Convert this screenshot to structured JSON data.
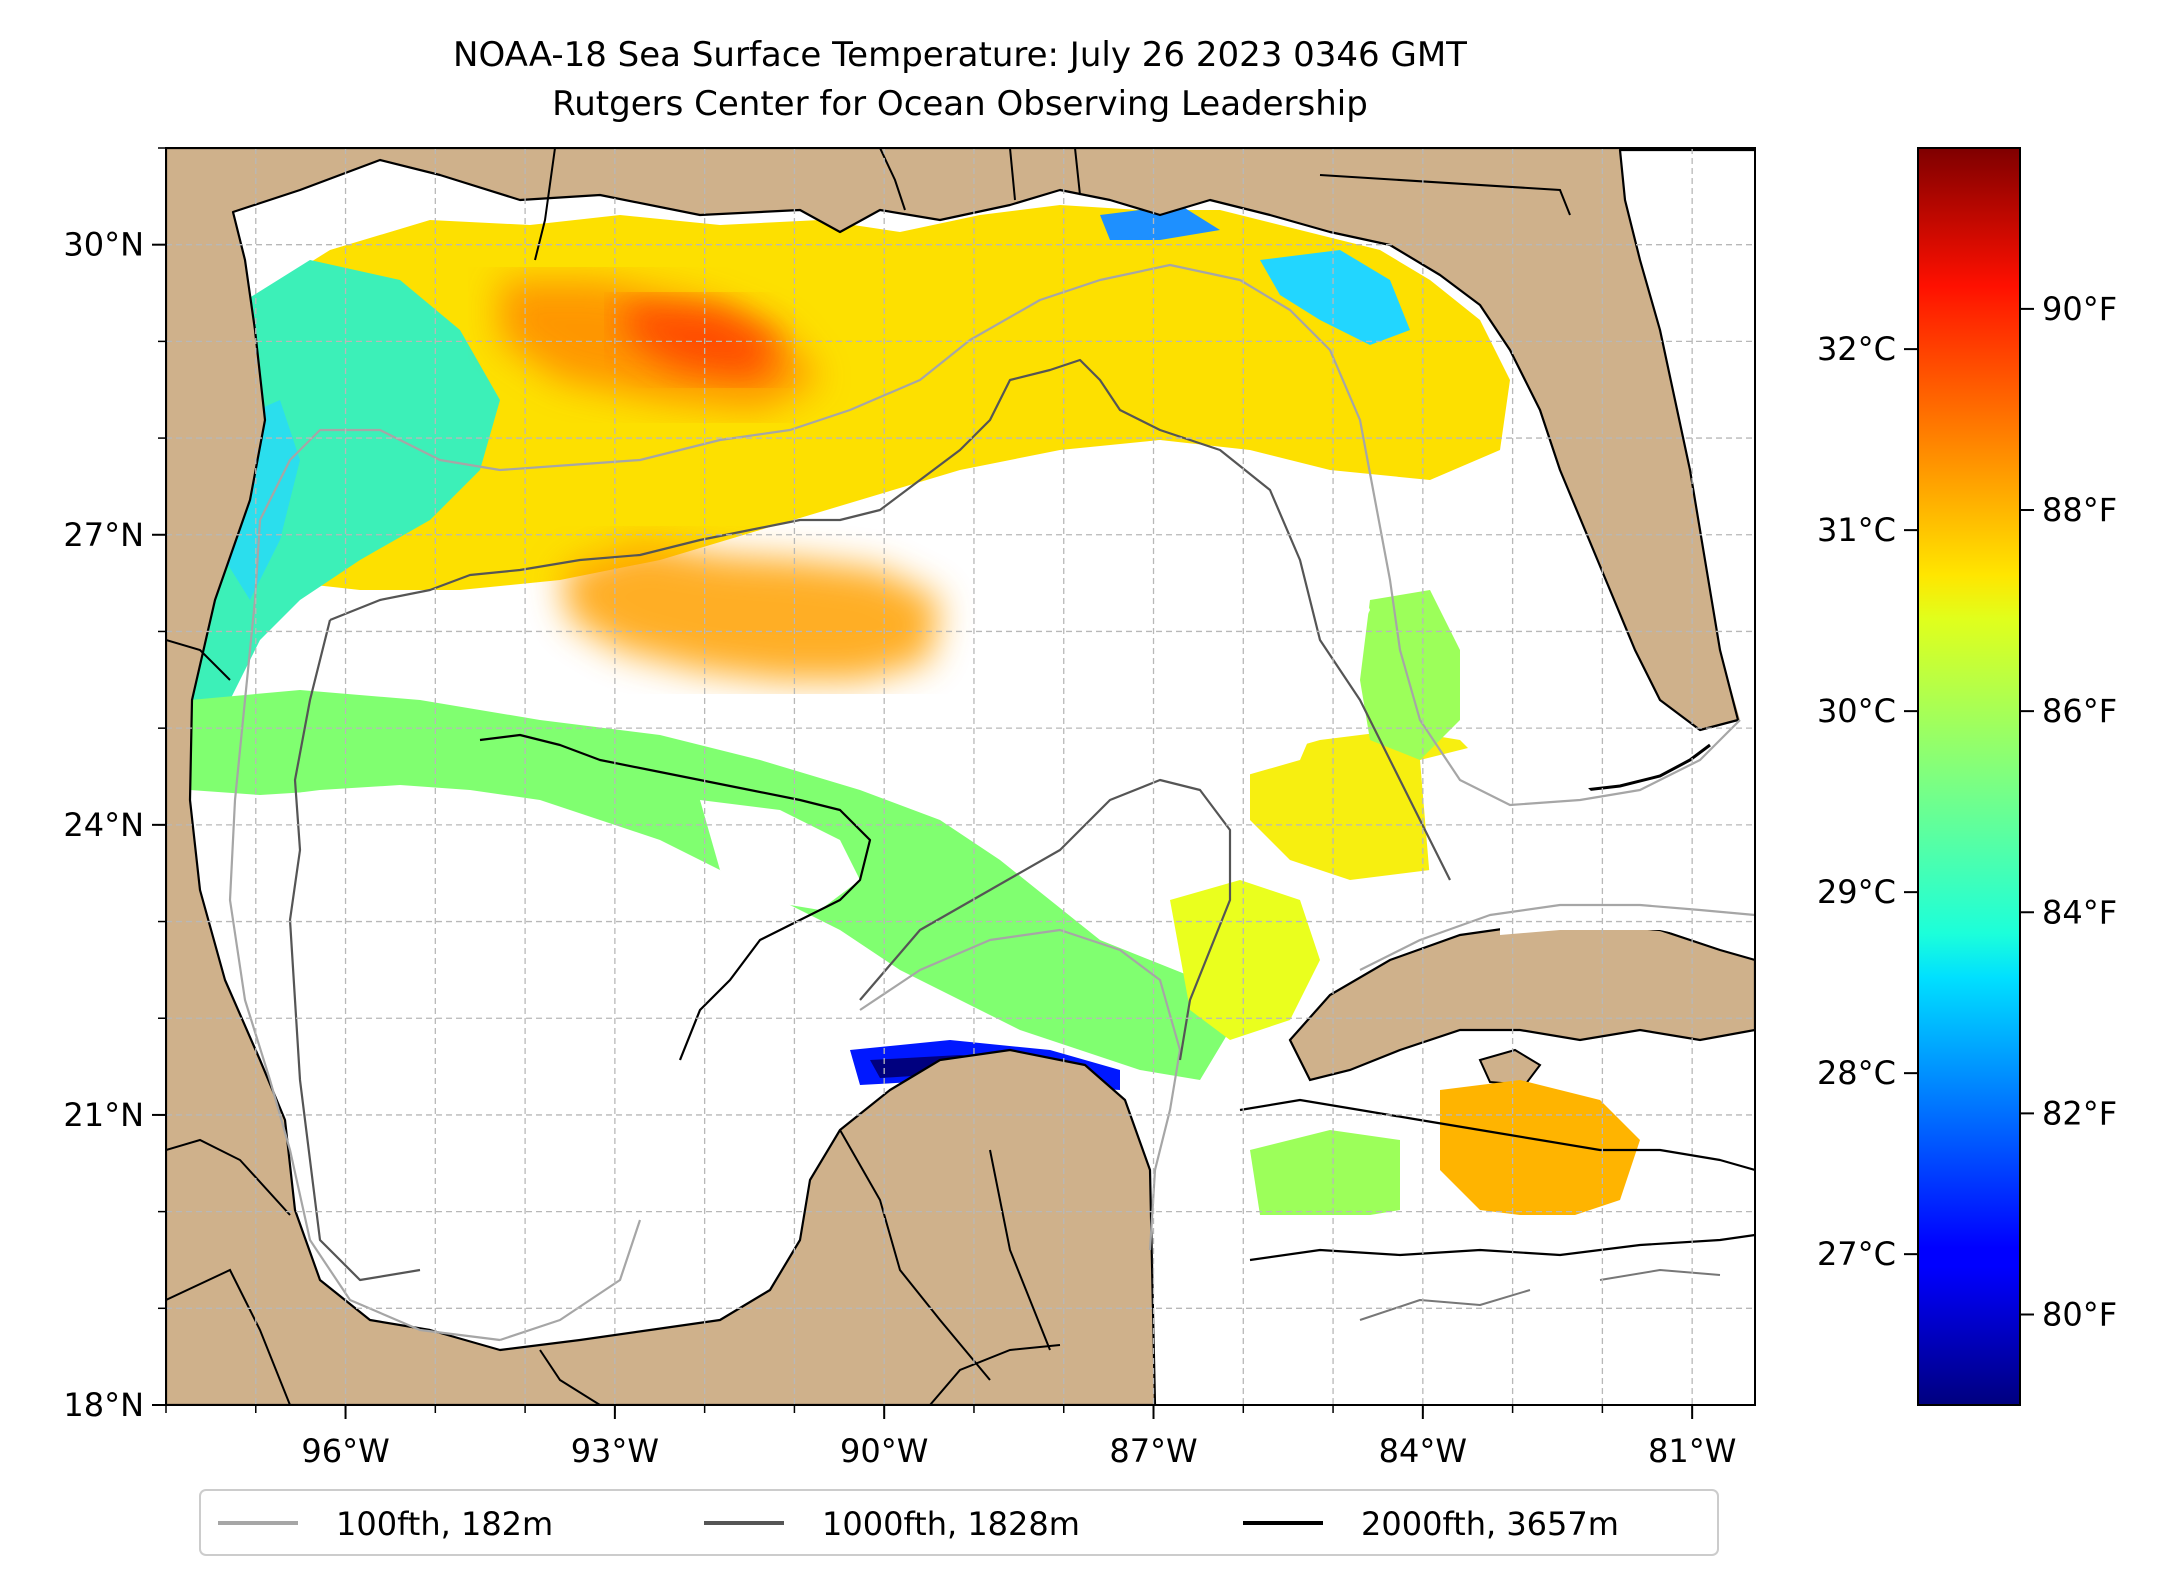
{
  "title": {
    "line1": "NOAA-18 Sea Surface Temperature: July 26 2023 0346 GMT",
    "line2": "Rutgers Center for Ocean Observing Leadership"
  },
  "map": {
    "lon_range": [
      -98.0,
      -80.3
    ],
    "lat_range": [
      18.0,
      31.0
    ],
    "x_ticks": [
      {
        "value": -96,
        "label": "96°W"
      },
      {
        "value": -93,
        "label": "93°W"
      },
      {
        "value": -90,
        "label": "90°W"
      },
      {
        "value": -87,
        "label": "87°W"
      },
      {
        "value": -84,
        "label": "84°W"
      },
      {
        "value": -81,
        "label": "81°W"
      }
    ],
    "y_ticks": [
      {
        "value": 18,
        "label": "18°N"
      },
      {
        "value": 21,
        "label": "21°N"
      },
      {
        "value": 24,
        "label": "24°N"
      },
      {
        "value": 27,
        "label": "27°N"
      },
      {
        "value": 30,
        "label": "30°N"
      }
    ],
    "grid": true,
    "colors": {
      "land": "#cfb18b",
      "ocean_nodata": "#ffffff",
      "grid": "#b8b8b8"
    }
  },
  "colorbar": {
    "colormap": "jet",
    "f_range": [
      79.1,
      91.6
    ],
    "celsius_ticks": [
      {
        "value": 27,
        "label": "27°C"
      },
      {
        "value": 28,
        "label": "28°C"
      },
      {
        "value": 29,
        "label": "29°C"
      },
      {
        "value": 30,
        "label": "30°C"
      },
      {
        "value": 31,
        "label": "31°C"
      },
      {
        "value": 32,
        "label": "32°C"
      }
    ],
    "fahrenheit_ticks": [
      {
        "value": 80,
        "label": "80°F"
      },
      {
        "value": 82,
        "label": "82°F"
      },
      {
        "value": 84,
        "label": "84°F"
      },
      {
        "value": 86,
        "label": "86°F"
      },
      {
        "value": 88,
        "label": "88°F"
      },
      {
        "value": 90,
        "label": "90°F"
      }
    ]
  },
  "legend": {
    "placement": "bottom-center",
    "items": [
      {
        "label": "100fth, 182m",
        "color": "#a6a6a6"
      },
      {
        "label": "1000fth, 1828m",
        "color": "#555555"
      },
      {
        "label": "2000fth, 3657m",
        "color": "#000000"
      }
    ]
  }
}
